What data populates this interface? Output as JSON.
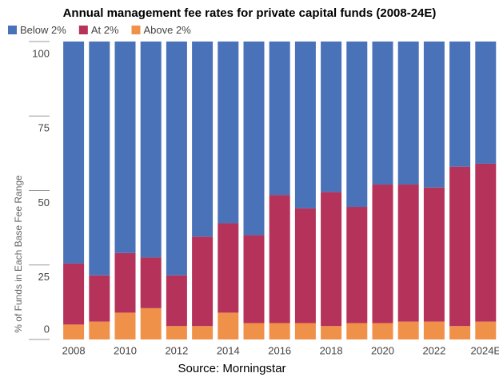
{
  "chart_data": {
    "type": "stacked_bar",
    "title": "Annual management fee rates for private capital funds (2008-24E)",
    "y_label": "% of Funds in Each Base Fee Range",
    "source": "Source: Morningstar",
    "categories": [
      "2008",
      null,
      "2010",
      null,
      "2012",
      null,
      "2014",
      null,
      "2016",
      null,
      "2018",
      null,
      "2020",
      null,
      "2022",
      null,
      "2024E"
    ],
    "series": [
      {
        "name": "Above 2%",
        "color": "#f0914a",
        "values": [
          5,
          6,
          9,
          10.5,
          4.5,
          4.5,
          9,
          5.5,
          5.5,
          5.5,
          4.5,
          5.5,
          5.5,
          6,
          6,
          4.5,
          6
        ]
      },
      {
        "name": "At 2%",
        "color": "#b5325a",
        "values": [
          20.5,
          15.5,
          20,
          17,
          17,
          30,
          30,
          29.5,
          43,
          38.5,
          45,
          39,
          46.5,
          46,
          45,
          53.5,
          53
        ]
      },
      {
        "name": "Below 2%",
        "color": "#4a72b8",
        "values": [
          74.5,
          78.5,
          71,
          72.5,
          78.5,
          65.5,
          61,
          65,
          51.5,
          56,
          50.5,
          55.5,
          48,
          48,
          49,
          42,
          41
        ]
      }
    ],
    "legend_order": [
      2,
      1,
      0
    ],
    "ylim": [
      0,
      100
    ],
    "yticks": [
      0,
      25,
      50,
      75,
      100
    ]
  }
}
